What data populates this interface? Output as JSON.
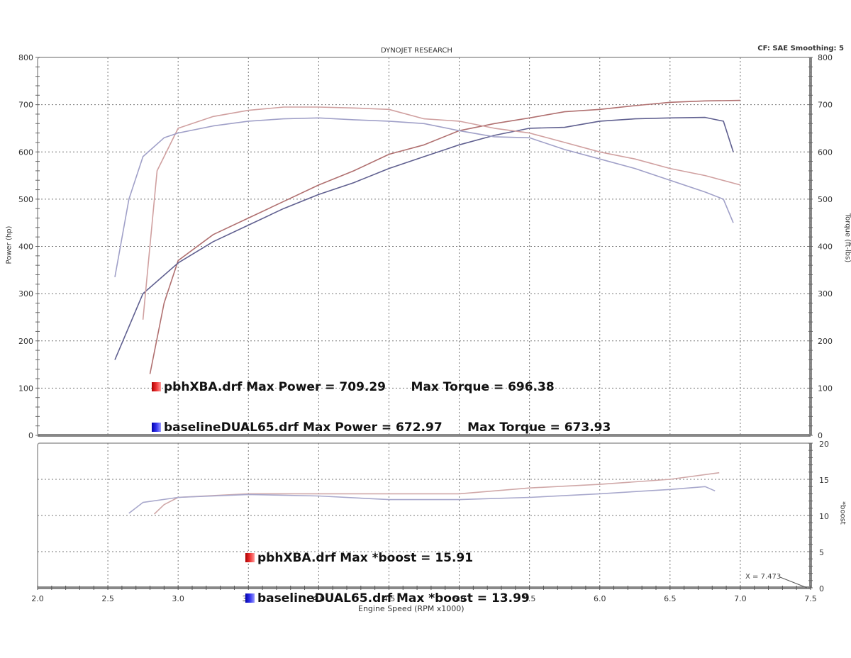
{
  "header": {
    "title": "DYNOJET RESEARCH",
    "settings": "CF: SAE  Smoothing: 5"
  },
  "main_plot": {
    "ylabel_left": "Power (hp)",
    "ylabel_right": "Torque (ft-lbs)",
    "yticks": [
      "800",
      "700",
      "600",
      "500",
      "400",
      "300",
      "200",
      "100",
      "0"
    ],
    "legend": [
      {
        "file": "pbhXBA.drf",
        "text": "pbhXBA.drf Max Power = 709.29      Max Torque = 696.38",
        "color": "#cc2222"
      },
      {
        "file": "baselineDUAL65.drf",
        "text": "baselineDUAL65.drf Max Power = 672.97      Max Torque = 673.93",
        "color": "#2222cc"
      }
    ]
  },
  "boost_plot": {
    "ylabel_right": "*boost",
    "yticks": [
      "20",
      "15",
      "10",
      "5",
      "0"
    ],
    "legend": [
      {
        "file": "pbhXBA.drf",
        "text": "pbhXBA.drf Max *boost = 15.91",
        "color": "#cc2222"
      },
      {
        "file": "baselineDUAL65.drf",
        "text": "baselineDUAL65.drf Max *boost = 13.99",
        "color": "#2222cc"
      }
    ],
    "cursor_label": "X = 7.473"
  },
  "xaxis": {
    "label": "Engine Speed (RPM x1000)",
    "ticks": [
      "2.0",
      "2.5",
      "3.0",
      "3.5",
      "4.0",
      "4.5",
      "5.0",
      "5.5",
      "6.0",
      "6.5",
      "7.0",
      "7.5"
    ]
  },
  "chart_data": [
    {
      "type": "line",
      "title": "DYNOJET RESEARCH",
      "subtitle": "CF: SAE  Smoothing: 5",
      "xlabel": "Engine Speed (RPM x1000)",
      "ylabel": "Power (hp)",
      "ylabel_right": "Torque (ft-lbs)",
      "xlim": [
        2.0,
        7.5
      ],
      "ylim": [
        0,
        800
      ],
      "grid": true,
      "legend_position": "lower-left inside plot",
      "series": [
        {
          "name": "pbhXBA.drf Power (hp)",
          "color": "#b07070",
          "x": [
            2.8,
            2.9,
            3.0,
            3.25,
            3.5,
            3.75,
            4.0,
            4.25,
            4.5,
            4.75,
            5.0,
            5.25,
            5.5,
            5.75,
            6.0,
            6.25,
            6.5,
            6.75,
            7.0
          ],
          "y": [
            130,
            280,
            370,
            425,
            460,
            495,
            530,
            560,
            595,
            615,
            645,
            660,
            672,
            685,
            690,
            698,
            705,
            708,
            709
          ]
        },
        {
          "name": "baselineDUAL65.drf Power (hp)",
          "color": "#606090",
          "x": [
            2.55,
            2.75,
            3.0,
            3.25,
            3.5,
            3.75,
            4.0,
            4.25,
            4.5,
            4.75,
            5.0,
            5.25,
            5.5,
            5.75,
            6.0,
            6.25,
            6.5,
            6.75,
            6.88,
            6.95
          ],
          "y": [
            160,
            300,
            365,
            410,
            445,
            480,
            510,
            535,
            565,
            590,
            615,
            635,
            650,
            652,
            665,
            670,
            672,
            673,
            665,
            600
          ]
        },
        {
          "name": "pbhXBA.drf Torque (ft-lbs)",
          "color": "#d0a0a0",
          "x": [
            2.75,
            2.85,
            3.0,
            3.25,
            3.5,
            3.75,
            4.0,
            4.25,
            4.5,
            4.75,
            5.0,
            5.25,
            5.5,
            5.75,
            6.0,
            6.25,
            6.5,
            6.75,
            7.0
          ],
          "y": [
            245,
            560,
            650,
            675,
            688,
            695,
            695,
            693,
            690,
            670,
            665,
            650,
            640,
            620,
            600,
            585,
            565,
            550,
            530
          ]
        },
        {
          "name": "baselineDUAL65.drf Torque (ft-lbs)",
          "color": "#a0a0c8",
          "x": [
            2.55,
            2.65,
            2.75,
            2.9,
            3.0,
            3.25,
            3.5,
            3.75,
            4.0,
            4.25,
            4.5,
            4.75,
            5.0,
            5.25,
            5.5,
            5.75,
            6.0,
            6.25,
            6.5,
            6.75,
            6.88,
            6.95
          ],
          "y": [
            335,
            500,
            590,
            630,
            640,
            655,
            665,
            670,
            672,
            668,
            665,
            660,
            645,
            632,
            630,
            605,
            585,
            565,
            540,
            515,
            500,
            450
          ]
        }
      ],
      "annotations": [
        "pbhXBA.drf Max Power = 709.29  Max Torque = 696.38",
        "baselineDUAL65.drf Max Power = 672.97  Max Torque = 673.93"
      ]
    },
    {
      "type": "line",
      "xlabel": "Engine Speed (RPM x1000)",
      "ylabel": "*boost",
      "xlim": [
        2.0,
        7.5
      ],
      "ylim": [
        0,
        20
      ],
      "grid": true,
      "series": [
        {
          "name": "pbhXBA.drf *boost",
          "color": "#d0a8a8",
          "x": [
            2.83,
            2.9,
            3.0,
            3.5,
            4.0,
            4.5,
            5.0,
            5.5,
            6.0,
            6.5,
            6.85
          ],
          "y": [
            10.2,
            11.5,
            12.5,
            13.0,
            13.0,
            13.0,
            13.0,
            13.8,
            14.3,
            15.0,
            15.91
          ]
        },
        {
          "name": "baselineDUAL65.drf *boost",
          "color": "#a8a8cc",
          "x": [
            2.65,
            2.75,
            3.0,
            3.5,
            4.0,
            4.5,
            5.0,
            5.5,
            6.0,
            6.5,
            6.75,
            6.82
          ],
          "y": [
            10.3,
            11.8,
            12.5,
            12.9,
            12.7,
            12.2,
            12.2,
            12.5,
            13.0,
            13.6,
            13.99,
            13.4
          ]
        }
      ],
      "annotations": [
        "pbhXBA.drf Max *boost = 15.91",
        "baselineDUAL65.drf Max *boost = 13.99",
        "X = 7.473"
      ]
    }
  ]
}
